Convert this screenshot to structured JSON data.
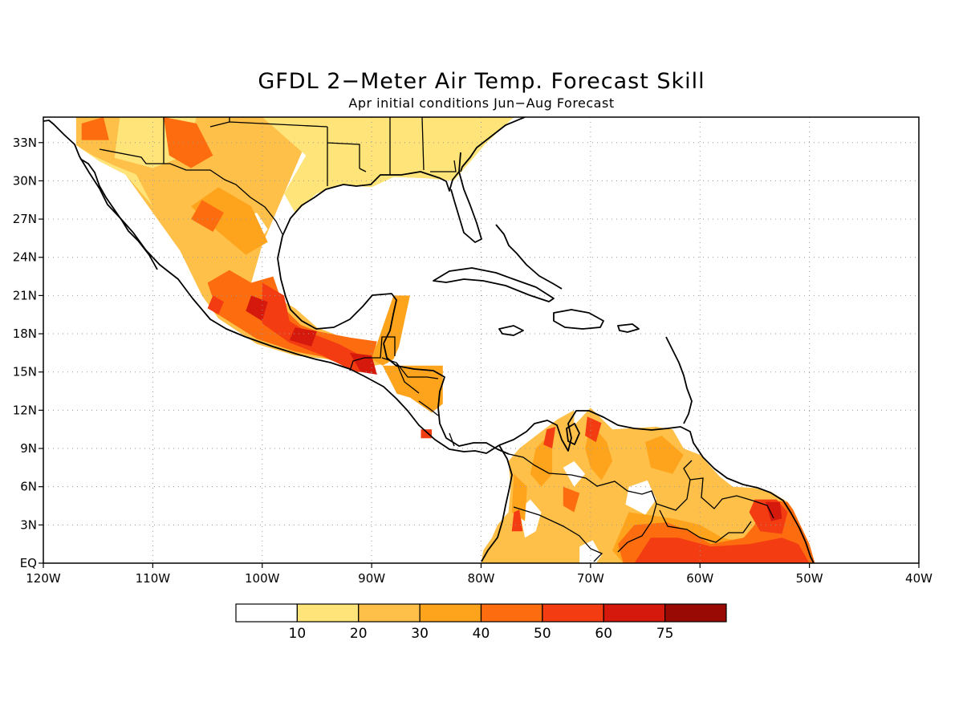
{
  "title": "GFDL 2−Meter Air Temp. Forecast Skill",
  "subtitle": "Apr initial conditions  Jun−Aug Forecast",
  "map": {
    "lon_range": [
      -120,
      -40
    ],
    "lat_range": [
      0,
      35
    ],
    "x_ticks": [
      {
        "lon": -120,
        "label": "120W"
      },
      {
        "lon": -110,
        "label": "110W"
      },
      {
        "lon": -100,
        "label": "100W"
      },
      {
        "lon": -90,
        "label": "90W"
      },
      {
        "lon": -80,
        "label": "80W"
      },
      {
        "lon": -70,
        "label": "70W"
      },
      {
        "lon": -60,
        "label": "60W"
      },
      {
        "lon": -50,
        "label": "50W"
      },
      {
        "lon": -40,
        "label": "40W"
      }
    ],
    "y_ticks": [
      {
        "lat": 0,
        "label": "EQ"
      },
      {
        "lat": 3,
        "label": "3N"
      },
      {
        "lat": 6,
        "label": "6N"
      },
      {
        "lat": 9,
        "label": "9N"
      },
      {
        "lat": 12,
        "label": "12N"
      },
      {
        "lat": 15,
        "label": "15N"
      },
      {
        "lat": 18,
        "label": "18N"
      },
      {
        "lat": 21,
        "label": "21N"
      },
      {
        "lat": 24,
        "label": "24N"
      },
      {
        "lat": 27,
        "label": "27N"
      },
      {
        "lat": 30,
        "label": "30N"
      },
      {
        "lat": 33,
        "label": "33N"
      }
    ],
    "grid": true
  },
  "legend": {
    "colors": [
      "#ffffff",
      "#ffe47a",
      "#fec048",
      "#fea31c",
      "#fd6d0f",
      "#f43c12",
      "#d5190c",
      "#9a0a05"
    ],
    "labels": [
      "10",
      "20",
      "30",
      "40",
      "50",
      "60",
      "75"
    ]
  },
  "skill_regions": [
    {
      "level": 2,
      "ring": [
        [
          -117,
          35
        ],
        [
          -100,
          35
        ],
        [
          -96,
          33
        ],
        [
          -98,
          29
        ],
        [
          -100,
          25
        ],
        [
          -101,
          22
        ],
        [
          -97,
          20
        ],
        [
          -95,
          18.5
        ],
        [
          -92,
          17.5
        ],
        [
          -89,
          17
        ],
        [
          -88.5,
          15.7
        ],
        [
          -91,
          15.3
        ],
        [
          -94,
          16
        ],
        [
          -97,
          16.3
        ],
        [
          -100.5,
          17.2
        ],
        [
          -104,
          19.2
        ],
        [
          -105.5,
          21
        ],
        [
          -107.5,
          24.5
        ],
        [
          -110,
          27.5
        ],
        [
          -112.5,
          30.5
        ],
        [
          -114.8,
          31.5
        ],
        [
          -117,
          32.8
        ]
      ]
    },
    {
      "level": 1,
      "ring": [
        [
          -100,
          35
        ],
        [
          -94,
          35
        ],
        [
          -83,
          35
        ],
        [
          -77,
          35
        ],
        [
          -79.5,
          33
        ],
        [
          -81,
          31.5
        ],
        [
          -82.5,
          30
        ],
        [
          -85,
          30.2
        ],
        [
          -88,
          30.3
        ],
        [
          -90,
          29.5
        ],
        [
          -93,
          29.7
        ],
        [
          -95,
          29
        ],
        [
          -97,
          27.5
        ],
        [
          -98,
          29
        ],
        [
          -96,
          32
        ]
      ]
    },
    {
      "level": 1,
      "ring": [
        [
          -117,
          32.8
        ],
        [
          -114.8,
          31.5
        ],
        [
          -112.5,
          30.5
        ],
        [
          -110,
          28
        ],
        [
          -111.5,
          30.5
        ],
        [
          -113.5,
          31.2
        ],
        [
          -115.5,
          32
        ]
      ]
    },
    {
      "level": 0,
      "ring": [
        [
          -102,
          27
        ],
        [
          -100.5,
          27.5
        ],
        [
          -99.5,
          26.2
        ],
        [
          -100.5,
          25
        ],
        [
          -102,
          25.5
        ]
      ]
    },
    {
      "level": 3,
      "ring": [
        [
          -106.5,
          28
        ],
        [
          -104,
          29.5
        ],
        [
          -101,
          28
        ],
        [
          -99.5,
          25.2
        ],
        [
          -101.5,
          24.2
        ],
        [
          -104,
          26
        ]
      ]
    },
    {
      "level": 3,
      "ring": [
        [
          -90,
          16
        ],
        [
          -88,
          21
        ],
        [
          -86.5,
          21
        ],
        [
          -87,
          19
        ],
        [
          -87.5,
          17
        ],
        [
          -88,
          16
        ],
        [
          -89,
          15.5
        ]
      ]
    },
    {
      "level": 1,
      "ring": [
        [
          -113,
          35
        ],
        [
          -106,
          35
        ],
        [
          -107,
          32
        ],
        [
          -110,
          31
        ],
        [
          -113.5,
          31.8
        ]
      ]
    },
    {
      "level": 1,
      "ring": [
        [
          -93,
          34.5
        ],
        [
          -86,
          34.5
        ],
        [
          -86,
          31
        ],
        [
          -88.5,
          30.4
        ],
        [
          -90.5,
          30.2
        ],
        [
          -93,
          30.5
        ]
      ]
    },
    {
      "level": 4,
      "ring": [
        [
          -105,
          22
        ],
        [
          -103,
          23
        ],
        [
          -101,
          22
        ],
        [
          -99,
          22.5
        ],
        [
          -98,
          20
        ],
        [
          -96.5,
          18.7
        ],
        [
          -95,
          18.2
        ],
        [
          -92,
          17.7
        ],
        [
          -89.5,
          17.4
        ],
        [
          -90,
          16
        ],
        [
          -92.5,
          15.5
        ],
        [
          -94.5,
          16.2
        ],
        [
          -97,
          16.6
        ],
        [
          -100.5,
          17.6
        ],
        [
          -104,
          19.5
        ]
      ]
    },
    {
      "level": 4,
      "ring": [
        [
          -109,
          35
        ],
        [
          -106,
          34.5
        ],
        [
          -104.5,
          32
        ],
        [
          -106.5,
          31
        ],
        [
          -108.5,
          32
        ]
      ]
    },
    {
      "level": 4,
      "ring": [
        [
          -116.5,
          34.5
        ],
        [
          -114.5,
          35
        ],
        [
          -114,
          33.2
        ],
        [
          -116.5,
          33.2
        ]
      ]
    },
    {
      "level": 4,
      "ring": [
        [
          -106.5,
          27
        ],
        [
          -104.5,
          26
        ],
        [
          -103.5,
          27.5
        ],
        [
          -105.5,
          28.5
        ]
      ]
    },
    {
      "level": 5,
      "ring": [
        [
          -100,
          22
        ],
        [
          -98,
          21
        ],
        [
          -97.5,
          19
        ],
        [
          -96,
          18.2
        ],
        [
          -93,
          17.2
        ],
        [
          -91,
          16.3
        ],
        [
          -90,
          15
        ],
        [
          -91.5,
          15
        ],
        [
          -94.5,
          16.3
        ],
        [
          -97.5,
          17.3
        ],
        [
          -100,
          18.8
        ]
      ]
    },
    {
      "level": 3,
      "ring": [
        [
          -89,
          15.5
        ],
        [
          -83.5,
          15.5
        ],
        [
          -83.5,
          12.5
        ],
        [
          -84.5,
          11.8
        ],
        [
          -86.5,
          13
        ],
        [
          -87.7,
          13.3
        ]
      ]
    },
    {
      "level": 6,
      "ring": [
        [
          -92,
          16.5
        ],
        [
          -90,
          16.3
        ],
        [
          -89.5,
          14.8
        ],
        [
          -91,
          15
        ]
      ]
    },
    {
      "level": 6,
      "ring": [
        [
          -101,
          21
        ],
        [
          -99.5,
          20.5
        ],
        [
          -100,
          19
        ],
        [
          -101.5,
          19.8
        ]
      ]
    },
    {
      "level": 6,
      "ring": [
        [
          -97,
          18.5
        ],
        [
          -95,
          18.2
        ],
        [
          -95.5,
          17
        ],
        [
          -97.5,
          17.5
        ]
      ]
    },
    {
      "level": 5,
      "ring": [
        [
          -104.5,
          21
        ],
        [
          -103.5,
          20.5
        ],
        [
          -104,
          19.5
        ],
        [
          -105,
          20
        ]
      ]
    },
    {
      "level": 5,
      "ring": [
        [
          -85.5,
          10.5
        ],
        [
          -84.5,
          10.5
        ],
        [
          -84.5,
          9.8
        ],
        [
          -85.5,
          9.8
        ]
      ]
    },
    {
      "level": 2,
      "ring": [
        [
          -77.5,
          8
        ],
        [
          -76.5,
          9
        ],
        [
          -75,
          10
        ],
        [
          -73,
          11.3
        ],
        [
          -71.5,
          12
        ],
        [
          -71.5,
          10.8
        ],
        [
          -70,
          12.2
        ],
        [
          -68,
          10.5
        ],
        [
          -66,
          10.6
        ],
        [
          -64,
          10.7
        ],
        [
          -62.5,
          10.5
        ],
        [
          -61.5,
          9
        ],
        [
          -60,
          8.5
        ],
        [
          -58.2,
          6.8
        ],
        [
          -57,
          6
        ],
        [
          -55,
          5.9
        ],
        [
          -53.5,
          5.6
        ],
        [
          -52,
          4.8
        ],
        [
          -51.5,
          4.2
        ],
        [
          -50,
          1.5
        ],
        [
          -49.5,
          0
        ],
        [
          -80,
          0
        ],
        [
          -79.8,
          1
        ],
        [
          -79,
          2
        ],
        [
          -78.5,
          3
        ],
        [
          -77.5,
          4
        ],
        [
          -77.3,
          6
        ]
      ]
    },
    {
      "level": 0,
      "ring": [
        [
          -76.5,
          4.2
        ],
        [
          -75.5,
          5
        ],
        [
          -74.5,
          4
        ],
        [
          -75,
          2.5
        ],
        [
          -76,
          2
        ]
      ]
    },
    {
      "level": 0,
      "ring": [
        [
          -72.5,
          7.5
        ],
        [
          -71.5,
          8
        ],
        [
          -70.5,
          7
        ],
        [
          -71.5,
          6
        ]
      ]
    },
    {
      "level": 0,
      "ring": [
        [
          -66.5,
          6
        ],
        [
          -64.8,
          6.5
        ],
        [
          -64,
          5
        ],
        [
          -65,
          3.8
        ],
        [
          -66.8,
          4.6
        ]
      ]
    },
    {
      "level": 0,
      "ring": [
        [
          -71,
          1.3
        ],
        [
          -69.8,
          1.8
        ],
        [
          -69,
          0.6
        ],
        [
          -69.5,
          0
        ],
        [
          -71,
          0
        ]
      ]
    },
    {
      "level": 3,
      "ring": [
        [
          -66.5,
          4
        ],
        [
          -62.5,
          3.5
        ],
        [
          -60,
          3
        ],
        [
          -58,
          2
        ],
        [
          -55,
          1.5
        ],
        [
          -52,
          2.5
        ],
        [
          -51,
          1.5
        ],
        [
          -50,
          0
        ],
        [
          -67,
          0
        ],
        [
          -68,
          1
        ]
      ]
    },
    {
      "level": 4,
      "ring": [
        [
          -66,
          3
        ],
        [
          -63,
          3.2
        ],
        [
          -61,
          2.5
        ],
        [
          -59,
          1.5
        ],
        [
          -56,
          2
        ],
        [
          -55,
          3
        ],
        [
          -54,
          5
        ],
        [
          -52,
          4.8
        ],
        [
          -51.5,
          4.2
        ],
        [
          -50,
          1.5
        ],
        [
          -49.5,
          0
        ],
        [
          -67,
          0
        ],
        [
          -67.5,
          1.5
        ]
      ]
    },
    {
      "level": 5,
      "ring": [
        [
          -64.5,
          2
        ],
        [
          -62,
          2
        ],
        [
          -59,
          1.3
        ],
        [
          -55.5,
          1.5
        ],
        [
          -52.5,
          2
        ],
        [
          -51,
          1.5
        ],
        [
          -50,
          0
        ],
        [
          -66,
          0
        ]
      ]
    },
    {
      "level": 3,
      "ring": [
        [
          -75,
          9
        ],
        [
          -73.5,
          10.3
        ],
        [
          -73.5,
          7
        ],
        [
          -74.5,
          6
        ],
        [
          -75.5,
          7
        ]
      ]
    },
    {
      "level": 3,
      "ring": [
        [
          -70,
          11
        ],
        [
          -68.5,
          9.5
        ],
        [
          -68,
          8
        ],
        [
          -69,
          6.5
        ],
        [
          -70,
          7.5
        ],
        [
          -70.5,
          9
        ]
      ]
    },
    {
      "level": 3,
      "ring": [
        [
          -65,
          9.5
        ],
        [
          -63.5,
          10
        ],
        [
          -61.5,
          8.5
        ],
        [
          -62.5,
          7
        ],
        [
          -64.5,
          7.5
        ]
      ]
    },
    {
      "level": 3,
      "ring": [
        [
          -77,
          7
        ],
        [
          -75.8,
          6
        ],
        [
          -76,
          3.3
        ],
        [
          -77.2,
          4
        ]
      ]
    },
    {
      "level": 4,
      "ring": [
        [
          -72.5,
          6
        ],
        [
          -71,
          5.5
        ],
        [
          -71.5,
          4
        ],
        [
          -72.5,
          4.5
        ]
      ]
    },
    {
      "level": 5,
      "ring": [
        [
          -70.3,
          11.5
        ],
        [
          -69,
          11
        ],
        [
          -69.5,
          9.5
        ],
        [
          -70.5,
          10
        ]
      ]
    },
    {
      "level": 5,
      "ring": [
        [
          -74,
          10.5
        ],
        [
          -73.2,
          10.7
        ],
        [
          -73.5,
          9
        ],
        [
          -74.3,
          9.3
        ]
      ]
    },
    {
      "level": 5,
      "ring": [
        [
          -55,
          5
        ],
        [
          -53,
          5
        ],
        [
          -52,
          4
        ],
        [
          -52.5,
          2.3
        ],
        [
          -54.5,
          2.5
        ],
        [
          -55.5,
          4
        ]
      ]
    },
    {
      "level": 6,
      "ring": [
        [
          -54,
          4.8
        ],
        [
          -52.7,
          4.8
        ],
        [
          -52.5,
          3.5
        ],
        [
          -53.5,
          3.3
        ]
      ]
    },
    {
      "level": 5,
      "ring": [
        [
          -77,
          4
        ],
        [
          -76.5,
          4.2
        ],
        [
          -76.2,
          2.5
        ],
        [
          -77.2,
          2.5
        ]
      ]
    }
  ]
}
